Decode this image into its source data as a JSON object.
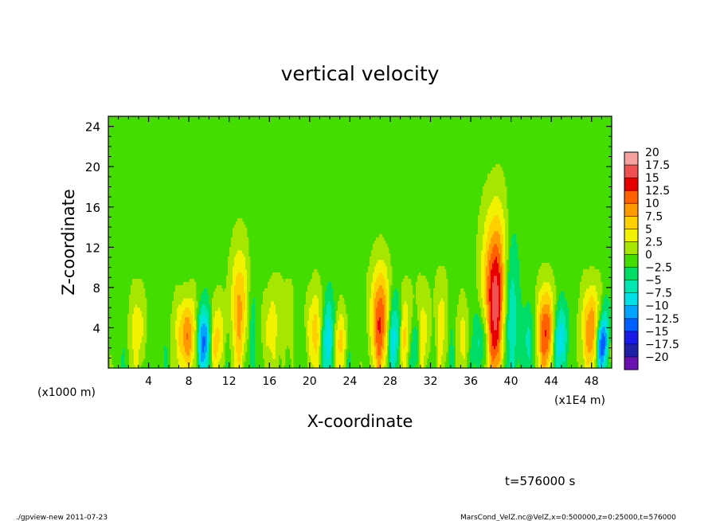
{
  "chart_data": {
    "type": "heatmap",
    "title": "vertical velocity",
    "xlabel": "X-coordinate",
    "ylabel": "Z-coordinate",
    "x_unit_left": "(x1000 m)",
    "x_unit_right": "(x1E4 m)",
    "xlim": [
      0,
      50
    ],
    "ylim": [
      0,
      25
    ],
    "x_ticks": [
      "4",
      "8",
      "12",
      "16",
      "20",
      "24",
      "28",
      "32",
      "36",
      "40",
      "44",
      "48"
    ],
    "x_tick_values": [
      4,
      8,
      12,
      16,
      20,
      24,
      28,
      32,
      36,
      40,
      44,
      48
    ],
    "y_ticks": [
      "4",
      "8",
      "12",
      "16",
      "20",
      "24"
    ],
    "y_tick_values": [
      4,
      8,
      12,
      16,
      20,
      24
    ],
    "colorbar": {
      "labels": [
        "20",
        "17.5",
        "15",
        "12.5",
        "10",
        "7.5",
        "5",
        "2.5",
        "0",
        "−2.5",
        "−5",
        "−7.5",
        "−10",
        "−12.5",
        "−15",
        "−17.5",
        "−20"
      ],
      "colors": [
        "#f7a0a0",
        "#ef5050",
        "#e60000",
        "#ff6000",
        "#ff9a00",
        "#ffd000",
        "#f2f200",
        "#a6e600",
        "#44dd00",
        "#00dd66",
        "#00e6b0",
        "#00e0e6",
        "#00a4ff",
        "#0060ff",
        "#1a1ae6",
        "#2020a6",
        "#6a10b0"
      ]
    },
    "features": [
      {
        "x": 7.8,
        "w": 1.6,
        "peak": 11,
        "height": 7
      },
      {
        "x": 13.0,
        "w": 1.5,
        "peak": 9,
        "height": 12
      },
      {
        "x": 16.0,
        "w": 1.4,
        "peak": 5,
        "height": 8
      },
      {
        "x": 17.6,
        "w": 1.4,
        "peak": 4,
        "height": 9
      },
      {
        "x": 20.5,
        "w": 1.5,
        "peak": 7,
        "height": 8
      },
      {
        "x": 21.8,
        "w": 1.3,
        "peak": -6,
        "height": 7
      },
      {
        "x": 23.0,
        "w": 1.4,
        "peak": 5,
        "height": 6
      },
      {
        "x": 27.0,
        "w": 1.6,
        "peak": 13,
        "height": 10
      },
      {
        "x": 28.5,
        "w": 1.2,
        "peak": -7,
        "height": 7
      },
      {
        "x": 29.2,
        "w": 1.4,
        "peak": 7,
        "height": 8
      },
      {
        "x": 30.5,
        "w": 1.2,
        "peak": -5,
        "height": 6
      },
      {
        "x": 31.0,
        "w": 1.5,
        "peak": 6,
        "height": 8
      },
      {
        "x": 33.0,
        "w": 1.3,
        "peak": 5,
        "height": 9
      },
      {
        "x": 38.3,
        "w": 1.8,
        "peak": 17,
        "height": 15
      },
      {
        "x": 37.2,
        "w": 1.2,
        "peak": -6,
        "height": 6
      },
      {
        "x": 43.5,
        "w": 1.4,
        "peak": 13,
        "height": 8
      },
      {
        "x": 45.0,
        "w": 1.2,
        "peak": -5,
        "height": 6
      },
      {
        "x": 48.0,
        "w": 1.4,
        "peak": 12,
        "height": 8
      },
      {
        "x": 49.0,
        "w": 1.0,
        "peak": -12,
        "height": 5
      },
      {
        "x": 3.0,
        "w": 1.5,
        "peak": 5,
        "height": 8
      },
      {
        "x": 9.5,
        "w": 1.1,
        "peak": -8,
        "height": 6
      },
      {
        "x": 11.0,
        "w": 1.3,
        "peak": 5,
        "height": 7
      },
      {
        "x": 35.2,
        "w": 1.3,
        "peak": 4,
        "height": 7
      },
      {
        "x": 41.5,
        "w": 1.3,
        "peak": -4,
        "height": 6
      }
    ]
  },
  "annotations": {
    "time": "t=576000 s",
    "footer_left": "./gpview-new  2011-07-23",
    "footer_right": "MarsCond_VelZ.nc@VelZ,x=0:500000,z=0:25000,t=576000"
  }
}
